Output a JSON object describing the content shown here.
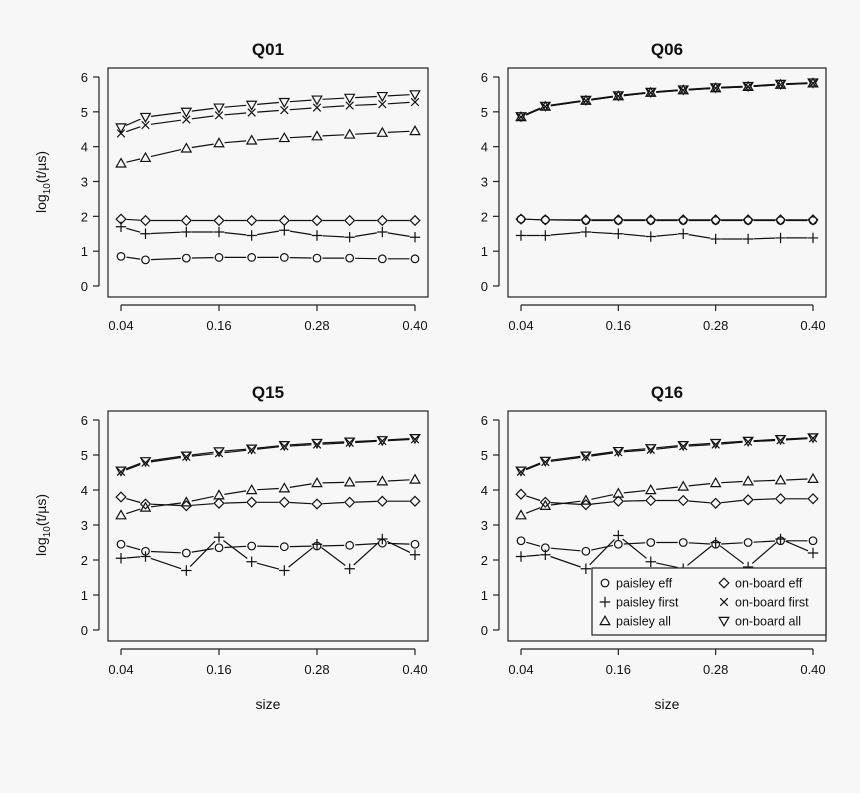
{
  "chart_data": [
    {
      "type": "line",
      "title": "Q01",
      "xlabel": "",
      "ylabel": "log10(t/µs)",
      "x": [
        0.04,
        0.07,
        0.12,
        0.16,
        0.2,
        0.24,
        0.28,
        0.32,
        0.36,
        0.4
      ],
      "xticks": [
        "0.04",
        "0.16",
        "0.28",
        "0.40"
      ],
      "yticks": [
        "0",
        "1",
        "2",
        "3",
        "4",
        "5",
        "6"
      ],
      "ylim": [
        0,
        6
      ],
      "series": [
        {
          "name": "paisley eff",
          "marker": "circle",
          "values": [
            0.85,
            0.75,
            0.8,
            0.82,
            0.82,
            0.82,
            0.8,
            0.8,
            0.78,
            0.78
          ]
        },
        {
          "name": "paisley first",
          "marker": "plus",
          "values": [
            1.7,
            1.5,
            1.55,
            1.55,
            1.45,
            1.6,
            1.45,
            1.4,
            1.55,
            1.4
          ]
        },
        {
          "name": "paisley all",
          "marker": "triangle",
          "values": [
            3.52,
            3.68,
            3.95,
            4.1,
            4.18,
            4.25,
            4.3,
            4.35,
            4.4,
            4.45
          ]
        },
        {
          "name": "on-board eff",
          "marker": "diamond",
          "values": [
            1.92,
            1.88,
            1.88,
            1.88,
            1.88,
            1.88,
            1.88,
            1.88,
            1.88,
            1.88
          ]
        },
        {
          "name": "on-board first",
          "marker": "x",
          "values": [
            4.38,
            4.62,
            4.78,
            4.9,
            4.98,
            5.05,
            5.12,
            5.18,
            5.22,
            5.28
          ]
        },
        {
          "name": "on-board all",
          "marker": "triangle-down",
          "values": [
            4.55,
            4.85,
            5.0,
            5.12,
            5.2,
            5.28,
            5.35,
            5.4,
            5.45,
            5.5
          ]
        }
      ]
    },
    {
      "type": "line",
      "title": "Q06",
      "xlabel": "",
      "ylabel": "",
      "x": [
        0.04,
        0.07,
        0.12,
        0.16,
        0.2,
        0.24,
        0.28,
        0.32,
        0.36,
        0.4
      ],
      "xticks": [
        "0.04",
        "0.16",
        "0.28",
        "0.40"
      ],
      "yticks": [
        "0",
        "1",
        "2",
        "3",
        "4",
        "5",
        "6"
      ],
      "ylim": [
        0,
        6
      ],
      "series": [
        {
          "name": "paisley eff",
          "marker": "circle",
          "values": [
            1.92,
            1.9,
            1.88,
            1.88,
            1.88,
            1.88,
            1.88,
            1.88,
            1.88,
            1.88
          ]
        },
        {
          "name": "paisley first",
          "marker": "plus",
          "values": [
            1.45,
            1.45,
            1.55,
            1.5,
            1.42,
            1.5,
            1.35,
            1.35,
            1.38,
            1.38
          ]
        },
        {
          "name": "paisley all",
          "marker": "triangle",
          "values": [
            4.85,
            5.15,
            5.32,
            5.45,
            5.55,
            5.62,
            5.68,
            5.72,
            5.78,
            5.82
          ]
        },
        {
          "name": "on-board eff",
          "marker": "diamond",
          "values": [
            1.92,
            1.9,
            1.9,
            1.9,
            1.9,
            1.9,
            1.9,
            1.9,
            1.9,
            1.9
          ]
        },
        {
          "name": "on-board first",
          "marker": "x",
          "values": [
            4.85,
            5.15,
            5.32,
            5.45,
            5.55,
            5.62,
            5.68,
            5.72,
            5.78,
            5.82
          ]
        },
        {
          "name": "on-board all",
          "marker": "triangle-down",
          "values": [
            4.87,
            5.17,
            5.34,
            5.47,
            5.57,
            5.64,
            5.7,
            5.74,
            5.8,
            5.84
          ]
        }
      ]
    },
    {
      "type": "line",
      "title": "Q15",
      "xlabel": "size",
      "ylabel": "log10(t/µs)",
      "x": [
        0.04,
        0.07,
        0.12,
        0.16,
        0.2,
        0.24,
        0.28,
        0.32,
        0.36,
        0.4
      ],
      "xticks": [
        "0.04",
        "0.16",
        "0.28",
        "0.40"
      ],
      "yticks": [
        "0",
        "1",
        "2",
        "3",
        "4",
        "5",
        "6"
      ],
      "ylim": [
        0,
        6
      ],
      "series": [
        {
          "name": "paisley eff",
          "marker": "circle",
          "values": [
            2.45,
            2.25,
            2.2,
            2.35,
            2.4,
            2.38,
            2.4,
            2.42,
            2.48,
            2.45
          ]
        },
        {
          "name": "paisley first",
          "marker": "plus",
          "values": [
            2.05,
            2.1,
            1.7,
            2.65,
            1.95,
            1.7,
            2.45,
            1.75,
            2.6,
            2.15
          ]
        },
        {
          "name": "paisley all",
          "marker": "triangle",
          "values": [
            3.28,
            3.5,
            3.65,
            3.85,
            4.0,
            4.05,
            4.2,
            4.22,
            4.25,
            4.3
          ]
        },
        {
          "name": "on-board eff",
          "marker": "diamond",
          "values": [
            3.8,
            3.6,
            3.55,
            3.62,
            3.65,
            3.65,
            3.6,
            3.65,
            3.68,
            3.68
          ]
        },
        {
          "name": "on-board first",
          "marker": "x",
          "values": [
            4.52,
            4.78,
            4.95,
            5.05,
            5.15,
            5.25,
            5.3,
            5.35,
            5.4,
            5.45
          ]
        },
        {
          "name": "on-board all",
          "marker": "triangle-down",
          "values": [
            4.55,
            4.82,
            4.98,
            5.1,
            5.18,
            5.28,
            5.34,
            5.38,
            5.42,
            5.48
          ]
        }
      ]
    },
    {
      "type": "line",
      "title": "Q16",
      "xlabel": "size",
      "ylabel": "",
      "x": [
        0.04,
        0.07,
        0.12,
        0.16,
        0.2,
        0.24,
        0.28,
        0.32,
        0.36,
        0.4
      ],
      "xticks": [
        "0.04",
        "0.16",
        "0.28",
        "0.40"
      ],
      "yticks": [
        "0",
        "1",
        "2",
        "3",
        "4",
        "5",
        "6"
      ],
      "ylim": [
        0,
        6
      ],
      "series": [
        {
          "name": "paisley eff",
          "marker": "circle",
          "values": [
            2.55,
            2.35,
            2.25,
            2.45,
            2.5,
            2.5,
            2.45,
            2.5,
            2.55,
            2.55
          ]
        },
        {
          "name": "paisley first",
          "marker": "plus",
          "values": [
            2.1,
            2.15,
            1.75,
            2.7,
            1.95,
            1.75,
            2.5,
            1.8,
            2.6,
            2.2
          ]
        },
        {
          "name": "paisley all",
          "marker": "triangle",
          "values": [
            3.28,
            3.55,
            3.7,
            3.9,
            4.0,
            4.1,
            4.2,
            4.25,
            4.28,
            4.32
          ]
        },
        {
          "name": "on-board eff",
          "marker": "diamond",
          "values": [
            3.88,
            3.65,
            3.58,
            3.68,
            3.7,
            3.7,
            3.62,
            3.72,
            3.75,
            3.75
          ]
        },
        {
          "name": "on-board first",
          "marker": "x",
          "values": [
            4.52,
            4.8,
            4.95,
            5.08,
            5.15,
            5.25,
            5.3,
            5.38,
            5.42,
            5.48
          ]
        },
        {
          "name": "on-board all",
          "marker": "triangle-down",
          "values": [
            4.55,
            4.83,
            4.98,
            5.11,
            5.19,
            5.28,
            5.34,
            5.4,
            5.45,
            5.5
          ]
        }
      ]
    }
  ],
  "legend": {
    "location": "bottom-right of Q16",
    "entries": [
      {
        "label": "paisley eff",
        "marker": "circle"
      },
      {
        "label": "on-board eff",
        "marker": "diamond"
      },
      {
        "label": "paisley first",
        "marker": "plus"
      },
      {
        "label": "on-board first",
        "marker": "x"
      },
      {
        "label": "paisley all",
        "marker": "triangle"
      },
      {
        "label": "on-board all",
        "marker": "triangle-down"
      }
    ]
  },
  "text": {
    "ylabel_prefix": "log",
    "ylabel_sub": "10",
    "ylabel_suffix": "(t/µs)",
    "xlabel": "size"
  },
  "colors": {
    "ink": "#111111",
    "background": "#f7f7f7"
  }
}
